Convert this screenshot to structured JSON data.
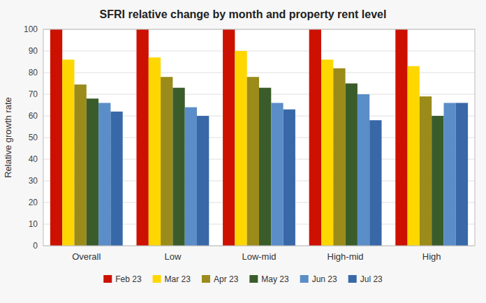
{
  "chart_data": {
    "type": "bar",
    "title": "SFRI relative change by month and property rent level",
    "categories": [
      "Overall",
      "Low",
      "Low-mid",
      "High-mid",
      "High"
    ],
    "series": [
      {
        "name": "Feb 23",
        "color": "#CC1100",
        "values": [
          100,
          100,
          100,
          100,
          100
        ]
      },
      {
        "name": "Mar 23",
        "color": "#FFD700",
        "values": [
          86,
          87,
          90,
          86,
          83
        ]
      },
      {
        "name": "Apr 23",
        "color": "#9B8B1A",
        "values": [
          74.5,
          78,
          78,
          82,
          69
        ]
      },
      {
        "name": "May 23",
        "color": "#3A5C2A",
        "values": [
          68,
          73,
          73,
          75,
          60
        ]
      },
      {
        "name": "Jun 23",
        "color": "#5B8DC8",
        "values": [
          66,
          64,
          66,
          70,
          66
        ]
      },
      {
        "name": "Jul 23",
        "color": "#3868A8",
        "values": [
          62,
          60,
          63,
          58,
          66
        ]
      }
    ],
    "ylabel": "Relative growth rate",
    "ylim": [
      0,
      100
    ],
    "yticks": [
      0,
      10,
      20,
      30,
      40,
      50,
      60,
      70,
      80,
      90,
      100
    ],
    "grid": true,
    "legend": "bottom"
  }
}
